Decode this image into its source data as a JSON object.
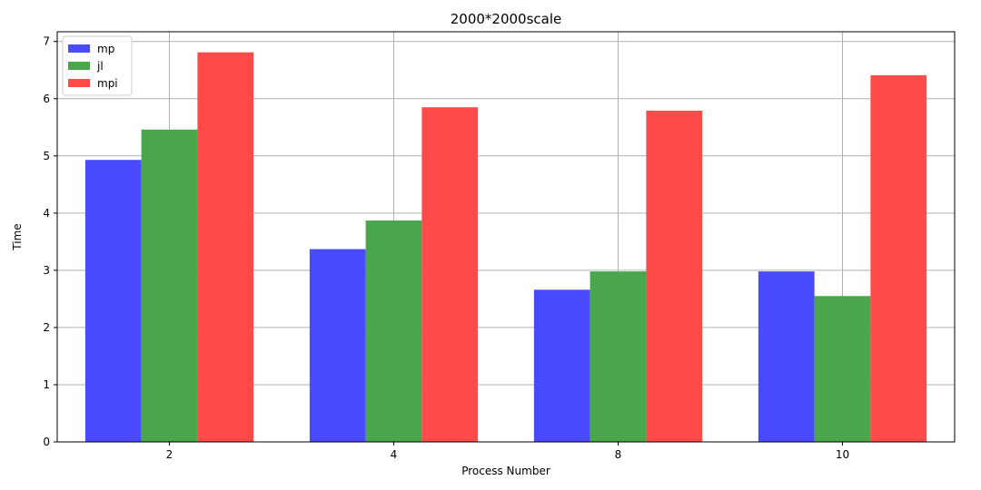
{
  "chart_data": {
    "type": "bar",
    "title": "2000*2000scale",
    "xlabel": "Process Number",
    "ylabel": "Time",
    "categories": [
      "2",
      "4",
      "8",
      "10"
    ],
    "series": [
      {
        "name": "mp",
        "values": [
          4.93,
          3.37,
          2.66,
          2.98
        ],
        "color": "#4a4aff"
      },
      {
        "name": "jl",
        "values": [
          5.46,
          3.87,
          2.98,
          2.55
        ],
        "color": "#4aa64a"
      },
      {
        "name": "mpi",
        "values": [
          6.81,
          5.85,
          5.79,
          6.41
        ],
        "color": "#ff4a4a"
      }
    ],
    "ylim": [
      0,
      7.17
    ],
    "yticks": [
      0,
      1,
      2,
      3,
      4,
      5,
      6,
      7
    ],
    "grid": true,
    "legend_position": "top-left"
  }
}
